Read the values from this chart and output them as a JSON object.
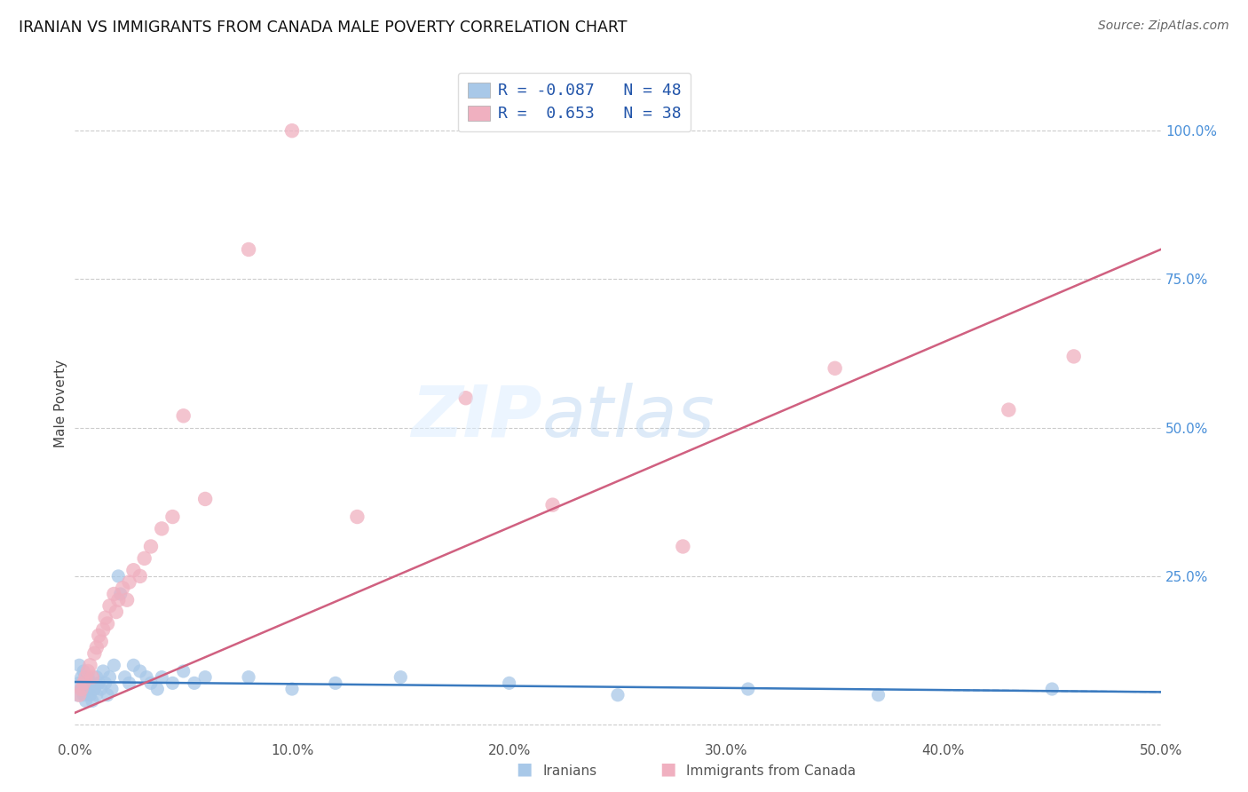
{
  "title": "IRANIAN VS IMMIGRANTS FROM CANADA MALE POVERTY CORRELATION CHART",
  "source": "Source: ZipAtlas.com",
  "ylabel": "Male Poverty",
  "xlim": [
    0.0,
    0.5
  ],
  "ylim": [
    -0.02,
    1.1
  ],
  "xtick_labels": [
    "0.0%",
    "10.0%",
    "20.0%",
    "30.0%",
    "40.0%",
    "50.0%"
  ],
  "xtick_vals": [
    0.0,
    0.1,
    0.2,
    0.3,
    0.4,
    0.5
  ],
  "ytick_labels": [
    "100.0%",
    "75.0%",
    "50.0%",
    "25.0%"
  ],
  "ytick_vals": [
    1.0,
    0.75,
    0.5,
    0.25
  ],
  "iranians_R": -0.087,
  "iranians_N": 48,
  "canada_R": 0.653,
  "canada_N": 38,
  "iranians_color": "#a8c8e8",
  "canada_color": "#f0b0c0",
  "line_iranians_color": "#3a7abf",
  "line_canada_color": "#d06080",
  "background_color": "#ffffff",
  "iranians_x": [
    0.001,
    0.002,
    0.002,
    0.003,
    0.003,
    0.004,
    0.004,
    0.005,
    0.005,
    0.006,
    0.006,
    0.007,
    0.007,
    0.008,
    0.009,
    0.01,
    0.01,
    0.011,
    0.012,
    0.013,
    0.014,
    0.015,
    0.016,
    0.017,
    0.018,
    0.02,
    0.021,
    0.023,
    0.025,
    0.027,
    0.03,
    0.033,
    0.035,
    0.038,
    0.04,
    0.045,
    0.05,
    0.055,
    0.06,
    0.08,
    0.1,
    0.12,
    0.15,
    0.2,
    0.25,
    0.31,
    0.37,
    0.45
  ],
  "iranians_y": [
    0.05,
    0.07,
    0.1,
    0.06,
    0.08,
    0.05,
    0.09,
    0.04,
    0.07,
    0.06,
    0.08,
    0.05,
    0.07,
    0.04,
    0.06,
    0.05,
    0.08,
    0.07,
    0.06,
    0.09,
    0.07,
    0.05,
    0.08,
    0.06,
    0.1,
    0.25,
    0.22,
    0.08,
    0.07,
    0.1,
    0.09,
    0.08,
    0.07,
    0.06,
    0.08,
    0.07,
    0.09,
    0.07,
    0.08,
    0.08,
    0.06,
    0.07,
    0.08,
    0.07,
    0.05,
    0.06,
    0.05,
    0.06
  ],
  "canada_x": [
    0.002,
    0.003,
    0.004,
    0.005,
    0.006,
    0.007,
    0.008,
    0.009,
    0.01,
    0.011,
    0.012,
    0.013,
    0.014,
    0.015,
    0.016,
    0.018,
    0.019,
    0.02,
    0.022,
    0.024,
    0.025,
    0.027,
    0.03,
    0.032,
    0.035,
    0.04,
    0.045,
    0.05,
    0.06,
    0.08,
    0.1,
    0.13,
    0.18,
    0.22,
    0.28,
    0.35,
    0.43,
    0.46
  ],
  "canada_y": [
    0.05,
    0.06,
    0.07,
    0.08,
    0.09,
    0.1,
    0.08,
    0.12,
    0.13,
    0.15,
    0.14,
    0.16,
    0.18,
    0.17,
    0.2,
    0.22,
    0.19,
    0.21,
    0.23,
    0.21,
    0.24,
    0.26,
    0.25,
    0.28,
    0.3,
    0.33,
    0.35,
    0.52,
    0.38,
    0.8,
    1.0,
    0.35,
    0.55,
    0.37,
    0.3,
    0.6,
    0.53,
    0.62
  ],
  "legend_line1": "R = -0.087   N = 48",
  "legend_line2": "R =  0.653   N = 38"
}
